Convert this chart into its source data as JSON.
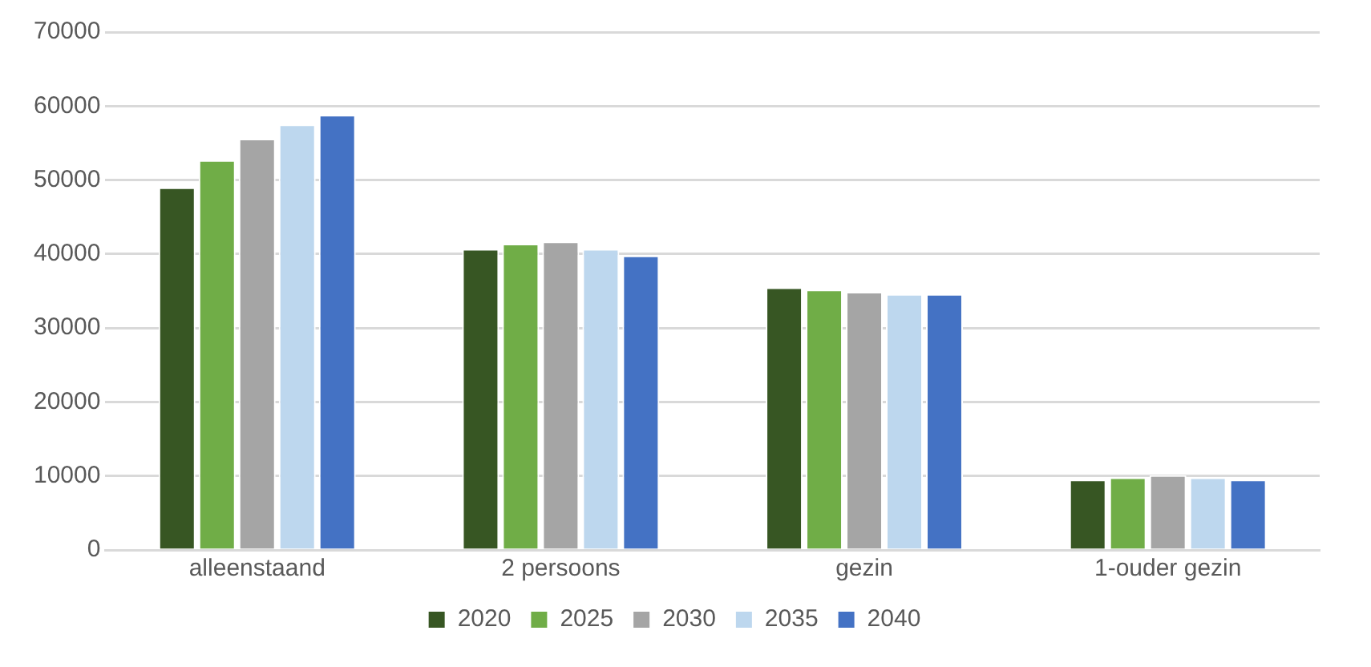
{
  "chart_data": {
    "type": "bar",
    "categories": [
      "alleenstaand",
      "2 persoons",
      "gezin",
      "1-ouder gezin"
    ],
    "series": [
      {
        "name": "2020",
        "color": "#375623",
        "values": [
          49000,
          40700,
          35500,
          9500
        ]
      },
      {
        "name": "2025",
        "color": "#70ad47",
        "values": [
          52700,
          41400,
          35200,
          9800
        ]
      },
      {
        "name": "2030",
        "color": "#a5a5a5",
        "values": [
          55600,
          41700,
          34900,
          10100
        ]
      },
      {
        "name": "2035",
        "color": "#bdd7ee",
        "values": [
          57500,
          40700,
          34600,
          9800
        ]
      },
      {
        "name": "2040",
        "color": "#4472c4",
        "values": [
          58800,
          39800,
          34600,
          9500
        ]
      }
    ],
    "ylim": [
      0,
      70000
    ],
    "yticks": [
      0,
      10000,
      20000,
      30000,
      40000,
      50000,
      60000,
      70000
    ],
    "grid": "y",
    "legend": "bottom"
  }
}
